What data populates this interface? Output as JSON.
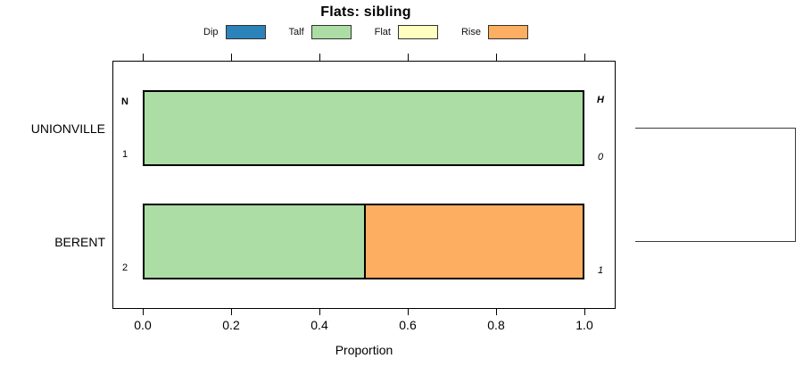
{
  "title": "Flats: sibling",
  "chart_data": {
    "type": "bar",
    "orientation": "horizontal-stacked",
    "title": "Flats: sibling",
    "xlabel": "Proportion",
    "xlim": [
      0,
      1
    ],
    "x_ticks": [
      0.0,
      0.2,
      0.4,
      0.6,
      0.8,
      1.0
    ],
    "x_tick_labels": [
      "0.0",
      "0.2",
      "0.4",
      "0.6",
      "0.8",
      "1.0"
    ],
    "grid": false,
    "legend_position": "top",
    "legend": [
      {
        "label": "Dip",
        "color": "#2b83ba"
      },
      {
        "label": "Talf",
        "color": "#abdda4"
      },
      {
        "label": "Flat",
        "color": "#ffffbf"
      },
      {
        "label": "Rise",
        "color": "#fdae61"
      }
    ],
    "rows": [
      {
        "category": "UNIONVILLE",
        "segments": [
          {
            "name": "Talf",
            "value": 1.0
          }
        ],
        "labels": {
          "left_top": {
            "text": "N",
            "bold": true
          },
          "left_bottom": {
            "text": "1"
          },
          "right_top": {
            "text": "H",
            "bold": true,
            "italic": true
          },
          "right_bottom": {
            "text": "0",
            "italic": true
          }
        }
      },
      {
        "category": "BERENT",
        "segments": [
          {
            "name": "Talf",
            "value": 0.5
          },
          {
            "name": "Rise",
            "value": 0.5
          }
        ],
        "labels": {
          "left_bottom": {
            "text": "2"
          },
          "right_bottom": {
            "text": "1",
            "italic": true
          }
        }
      }
    ],
    "right_bracket": {
      "connects": [
        "UNIONVILLE",
        "BERENT"
      ]
    },
    "colors": {
      "bar_border": "#000000",
      "box_border": "#000000",
      "bracket": "#3a3a3a"
    }
  }
}
